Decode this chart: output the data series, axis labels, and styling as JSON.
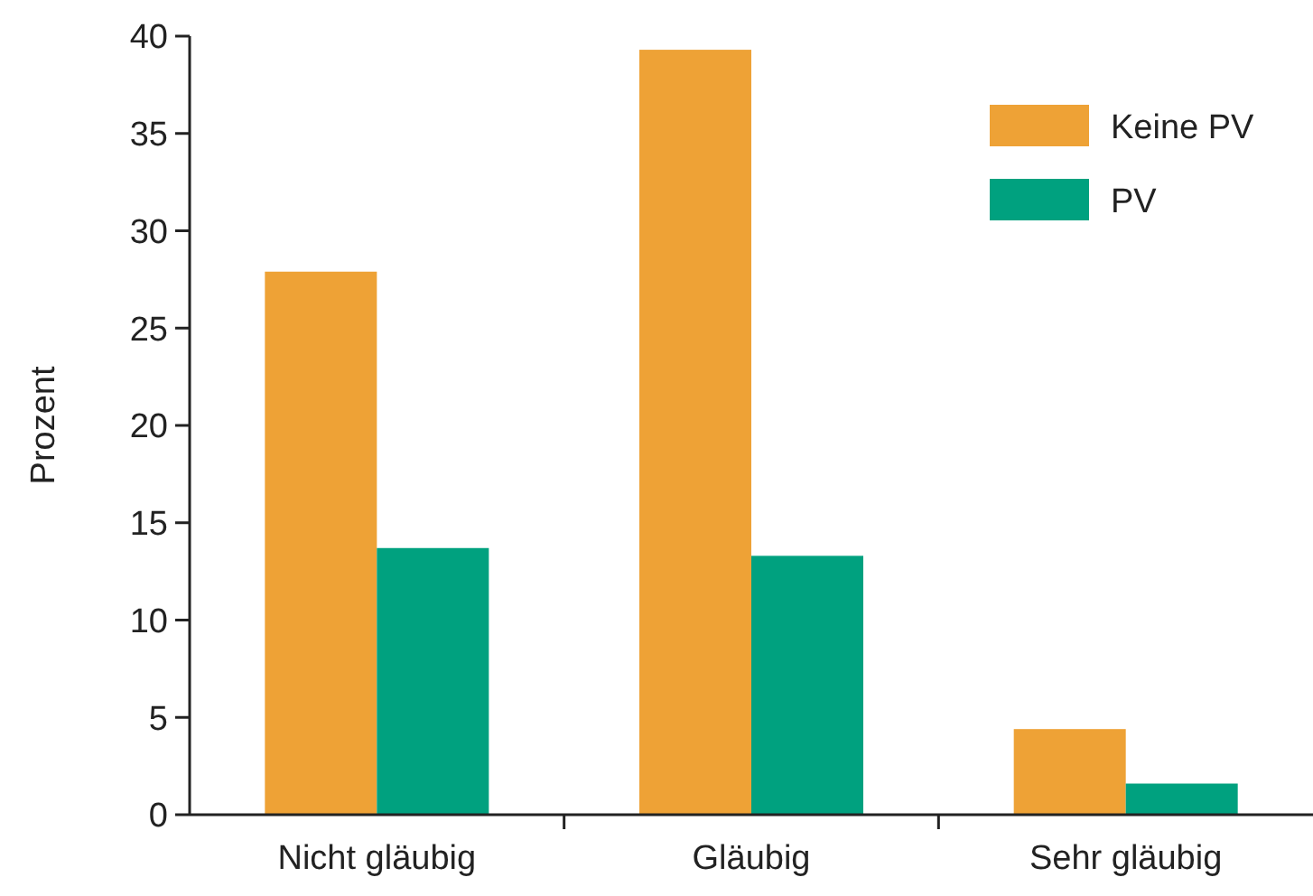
{
  "chart_data": {
    "type": "bar",
    "ylabel": "Prozent",
    "categories": [
      "Nicht gläubig",
      "Gläubig",
      "Sehr gläubig"
    ],
    "series": [
      {
        "name": "Keine PV",
        "color": "#eea236",
        "values": [
          27.9,
          39.3,
          4.4
        ]
      },
      {
        "name": "PV",
        "color": "#00a17f",
        "values": [
          13.7,
          13.3,
          1.6
        ]
      }
    ],
    "ylim": [
      0,
      40
    ],
    "yticks": [
      0,
      5,
      10,
      15,
      20,
      25,
      30,
      35,
      40
    ],
    "legend": "top right",
    "grid": false
  }
}
